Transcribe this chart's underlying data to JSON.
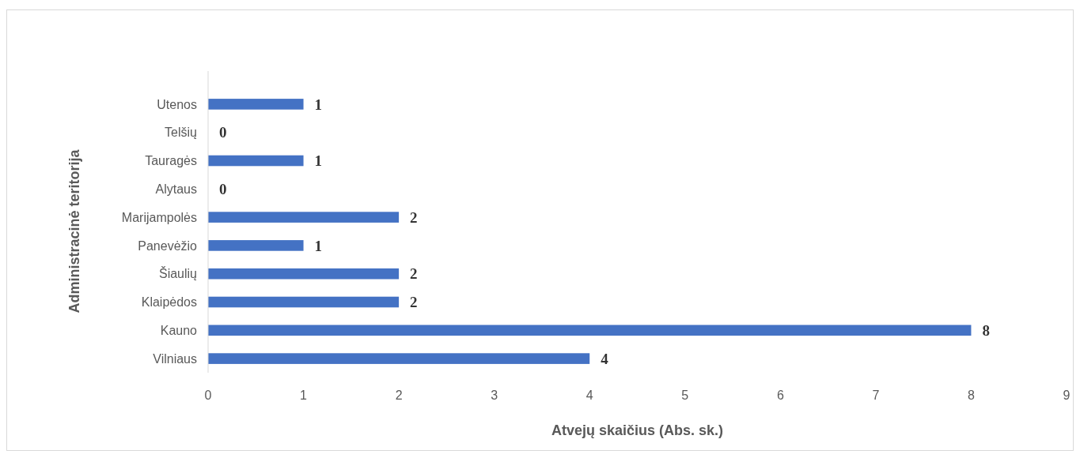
{
  "chart_data": {
    "type": "bar",
    "orientation": "horizontal",
    "xlabel": "Atvejų skaičius (Abs. sk.)",
    "ylabel": "Administracinė teritorija",
    "categories": [
      "Utenos",
      "Telšių",
      "Tauragės",
      "Alytaus",
      "Marijampolės",
      "Panevėžio",
      "Šiaulių",
      "Klaipėdos",
      "Kauno",
      "Vilniaus"
    ],
    "values": [
      1,
      0,
      1,
      0,
      2,
      1,
      2,
      2,
      8,
      4
    ],
    "color": "#4472c4",
    "xlim": [
      0,
      9
    ],
    "xticks": [
      0,
      1,
      2,
      3,
      4,
      5,
      6,
      7,
      8,
      9
    ],
    "data_labels": true
  }
}
